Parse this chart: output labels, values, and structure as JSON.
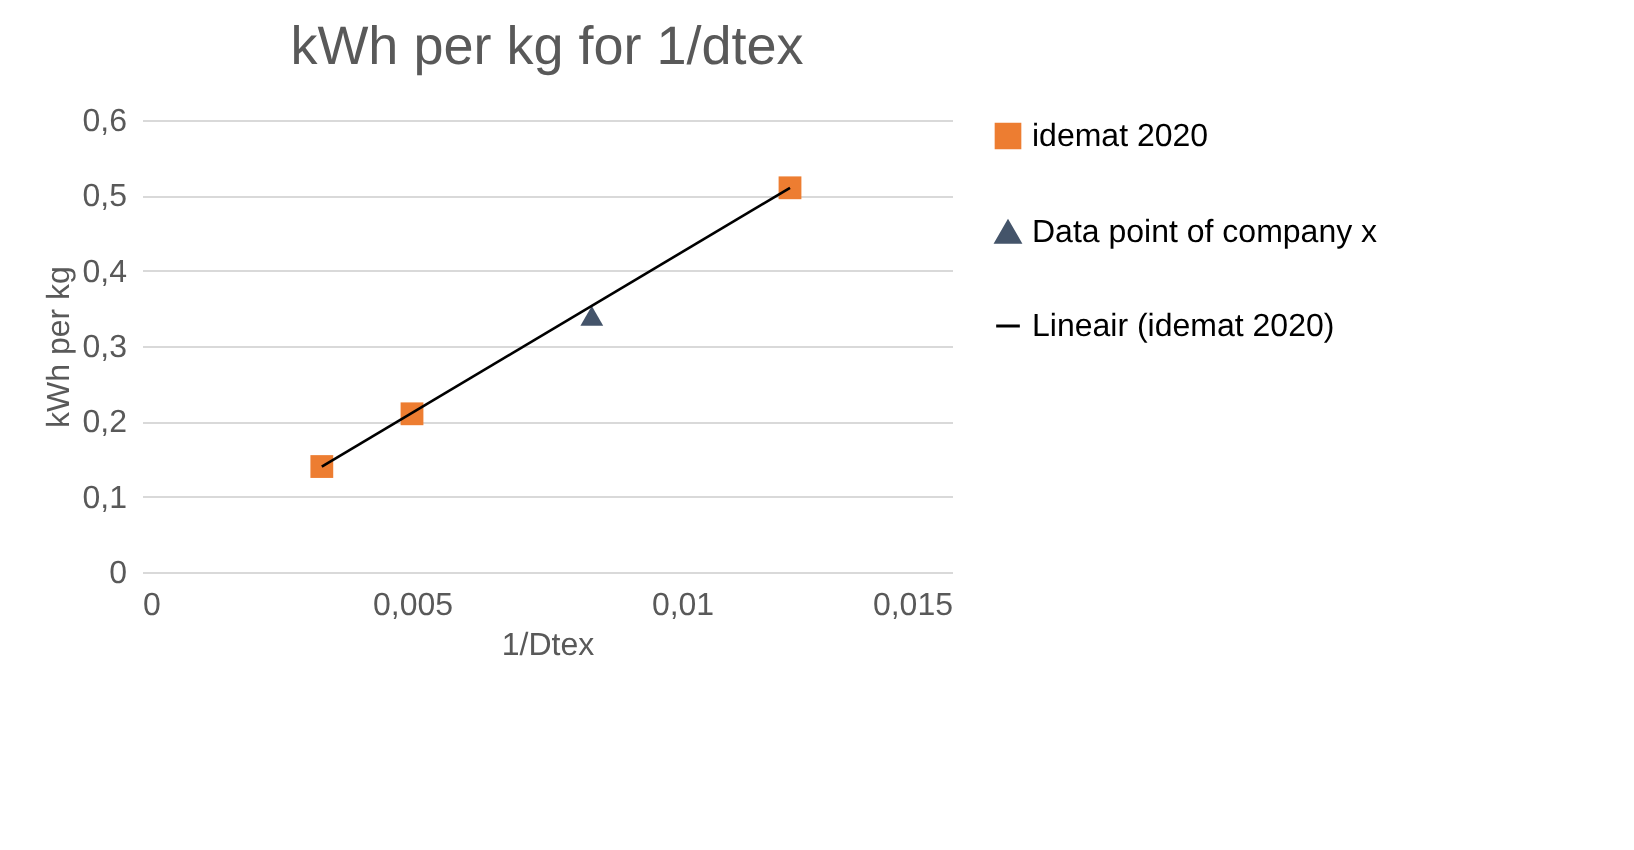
{
  "chart_data": {
    "type": "scatter",
    "title": "kWh per kg for 1/dtex",
    "xlabel": "1/Dtex",
    "ylabel": "kWh per kg",
    "series": [
      {
        "name": "idemat 2020",
        "color": "#ed7d31",
        "marker": "square",
        "x": [
          0.00333,
          0.005,
          0.012
        ],
        "values": [
          0.14,
          0.21,
          0.51
        ]
      },
      {
        "name": "Data point of company x",
        "color": "#44546a",
        "marker": "triangle",
        "x": [
          0.00833
        ],
        "values": [
          0.34
        ]
      },
      {
        "name": "Lineair (idemat 2020)",
        "type": "line",
        "color": "#000000",
        "x": [
          0.00333,
          0.012
        ],
        "values": [
          0.14,
          0.51
        ]
      }
    ],
    "xlim": [
      0,
      0.015
    ],
    "xticks": [
      0,
      {
        "value": 0.005,
        "label": "0,005"
      },
      {
        "value": 0.01,
        "label": "0,01"
      },
      {
        "value": 0.015,
        "label": "0,015"
      }
    ],
    "ylim": [
      0,
      0.6
    ],
    "yticks": [
      0,
      {
        "value": 0.1,
        "label": "0,1"
      },
      {
        "value": 0.2,
        "label": "0,2"
      },
      {
        "value": 0.3,
        "label": "0,3"
      },
      {
        "value": 0.4,
        "label": "0,4"
      },
      {
        "value": 0.5,
        "label": "0,5"
      },
      {
        "value": 0.6,
        "label": "0,6"
      }
    ],
    "grid": "y",
    "legend": "right"
  }
}
